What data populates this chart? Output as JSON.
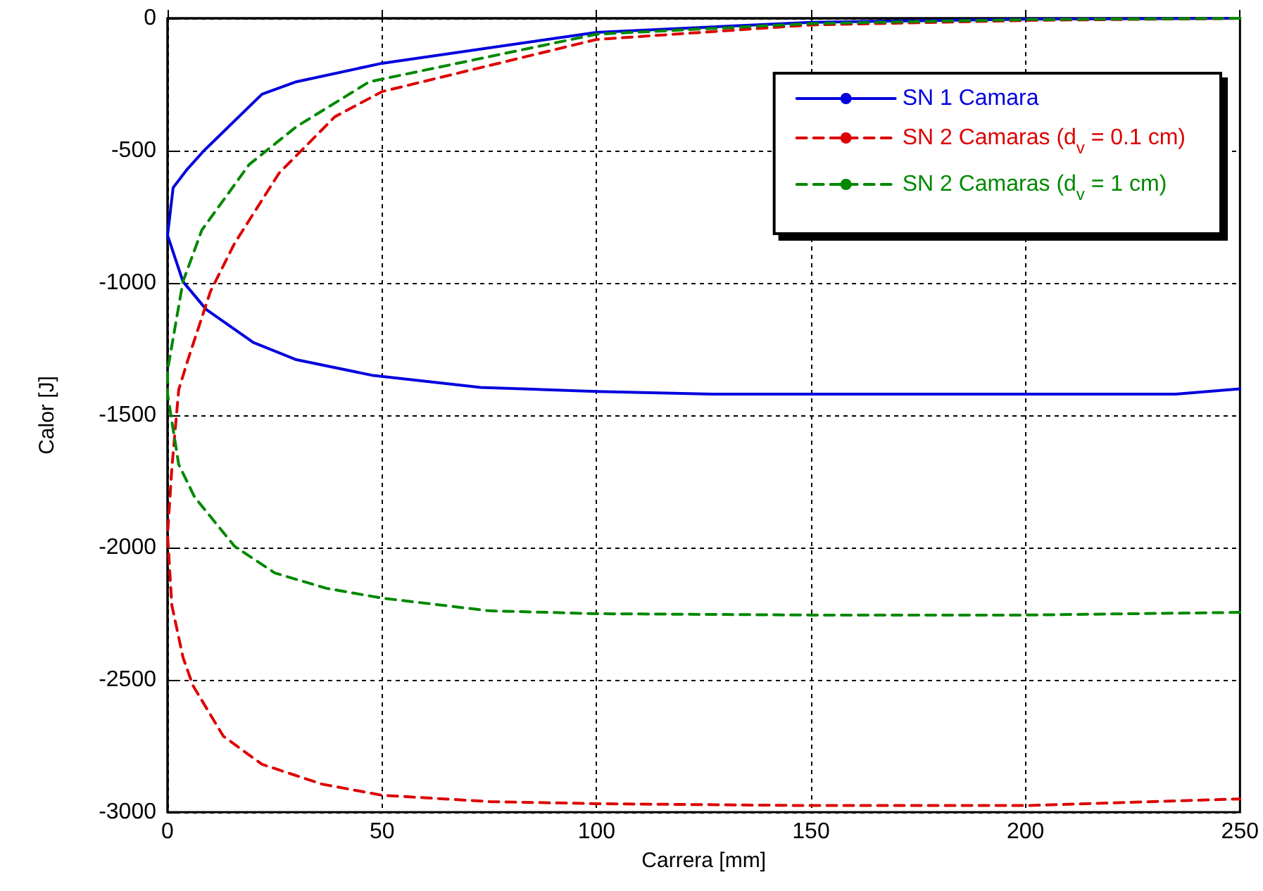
{
  "chart_data": {
    "type": "line",
    "xlabel": "Carrera [mm]",
    "ylabel": "Calor [J]",
    "xlim": [
      0,
      250
    ],
    "ylim": [
      -3000,
      0
    ],
    "xticks": [
      0,
      50,
      100,
      150,
      200,
      250
    ],
    "yticks": [
      -3000,
      -2500,
      -2000,
      -1500,
      -1000,
      -500,
      0
    ],
    "grid": true,
    "legend": "top right",
    "marker": "none",
    "series": [
      {
        "name": "SN 1 Camara",
        "color": "#0000dd",
        "line_style": "solid",
        "x": [
          250,
          200,
          150,
          100,
          50,
          30,
          22,
          8.5,
          4.6,
          1.3,
          0,
          3.6,
          9,
          20,
          30,
          48,
          73,
          100,
          127,
          235,
          250
        ],
        "values": [
          0,
          -3,
          -15,
          -53,
          -170,
          -240,
          -287,
          -500,
          -570,
          -640,
          -820,
          -995,
          -1100,
          -1225,
          -1290,
          -1350,
          -1395,
          -1410,
          -1420,
          -1420,
          -1400
        ]
      },
      {
        "name": "SN 2 Camaras (d$_{v}$ = 0.1 cm)",
        "color": "#dd0000",
        "line_style": "dashed",
        "x": [
          250,
          200,
          150,
          100,
          50,
          39,
          26,
          15.6,
          10,
          4.6,
          2.6,
          1,
          0,
          1,
          3.6,
          5.9,
          13,
          22,
          36,
          50,
          75,
          100,
          150,
          200,
          250
        ],
        "values": [
          0,
          -8,
          -25,
          -80,
          -277,
          -372,
          -585,
          -851,
          -1032,
          -1298,
          -1404,
          -1700,
          -1952,
          -2218,
          -2415,
          -2521,
          -2713,
          -2819,
          -2894,
          -2936,
          -2960,
          -2968,
          -2975,
          -2975,
          -2950
        ]
      },
      {
        "name": "SN 2 Camaras (d$_{v}$ = 1 cm)",
        "color": "#008800",
        "line_style": "dashed",
        "x": [
          250,
          200,
          150,
          100,
          47,
          30,
          19,
          8,
          3.6,
          0,
          0,
          2.6,
          6.3,
          15.6,
          25,
          37,
          50,
          75,
          100,
          150,
          200,
          250
        ],
        "values": [
          0,
          -5,
          -20,
          -60,
          -240,
          -410,
          -553,
          -800,
          -995,
          -1330,
          -1420,
          -1686,
          -1809,
          -1995,
          -2096,
          -2154,
          -2191,
          -2239,
          -2250,
          -2255,
          -2255,
          -2245
        ]
      }
    ]
  }
}
